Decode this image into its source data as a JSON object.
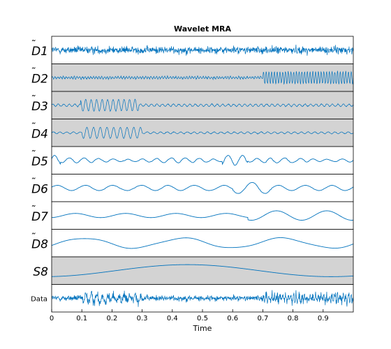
{
  "chart_data": {
    "type": "line",
    "title": "Wavelet MRA",
    "xlabel": "Time",
    "xlim": [
      0,
      1
    ],
    "x_ticks": [
      {
        "value": 0,
        "label": "0"
      },
      {
        "value": 0.1,
        "label": "0.1"
      },
      {
        "value": 0.2,
        "label": "0.2"
      },
      {
        "value": 0.3,
        "label": "0.3"
      },
      {
        "value": 0.4,
        "label": "0.4"
      },
      {
        "value": 0.5,
        "label": "0.5"
      },
      {
        "value": 0.6,
        "label": "0.6"
      },
      {
        "value": 0.7,
        "label": "0.7"
      },
      {
        "value": 0.8,
        "label": "0.8"
      },
      {
        "value": 0.9,
        "label": "0.9"
      }
    ],
    "line_color": "#0072bd",
    "highlight_color": "#d3d3d3",
    "panels": [
      {
        "label": "D1",
        "tilde": true,
        "shaded": false
      },
      {
        "label": "D2",
        "tilde": true,
        "shaded": true
      },
      {
        "label": "D3",
        "tilde": true,
        "shaded": true
      },
      {
        "label": "D4",
        "tilde": true,
        "shaded": true
      },
      {
        "label": "D5",
        "tilde": true,
        "shaded": false
      },
      {
        "label": "D6",
        "tilde": true,
        "shaded": false
      },
      {
        "label": "D7",
        "tilde": true,
        "shaded": false
      },
      {
        "label": "D8",
        "tilde": true,
        "shaded": false
      },
      {
        "label": "S8",
        "tilde": false,
        "shaded": true
      },
      {
        "label": "Data",
        "tilde": false,
        "shaded": false
      }
    ]
  }
}
